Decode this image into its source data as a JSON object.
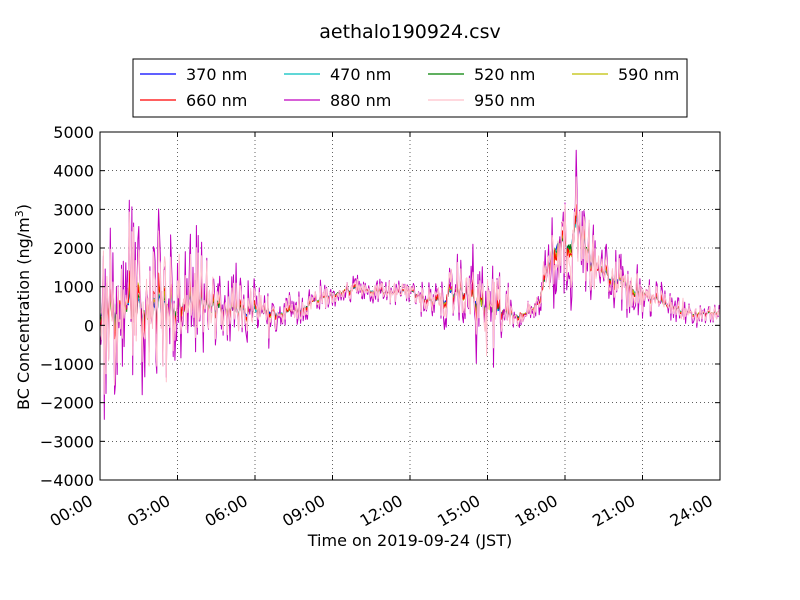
{
  "chart_data": {
    "type": "line",
    "title": "aethalo190924.csv",
    "xlabel": "Time on 2019-09-24 (JST)",
    "ylabel_main": "BC Concentration (ng/m",
    "ylabel_sup": "3",
    "ylabel_close": ")",
    "xlim_hours": [
      0,
      24
    ],
    "ylim": [
      -4000,
      5000
    ],
    "x_ticks": [
      {
        "hour": 0,
        "label": "00:00"
      },
      {
        "hour": 3,
        "label": "03:00"
      },
      {
        "hour": 6,
        "label": "06:00"
      },
      {
        "hour": 9,
        "label": "09:00"
      },
      {
        "hour": 12,
        "label": "12:00"
      },
      {
        "hour": 15,
        "label": "15:00"
      },
      {
        "hour": 18,
        "label": "18:00"
      },
      {
        "hour": 21,
        "label": "21:00"
      },
      {
        "hour": 24,
        "label": "24:00"
      }
    ],
    "y_ticks": [
      {
        "value": 5000,
        "label": "5000"
      },
      {
        "value": 4000,
        "label": "4000"
      },
      {
        "value": 3000,
        "label": "3000"
      },
      {
        "value": 2000,
        "label": "2000"
      },
      {
        "value": 1000,
        "label": "1000"
      },
      {
        "value": 0,
        "label": "0"
      },
      {
        "value": -1000,
        "label": "−1000"
      },
      {
        "value": -2000,
        "label": "−2000"
      },
      {
        "value": -3000,
        "label": "−3000"
      },
      {
        "value": -4000,
        "label": "−4000"
      }
    ],
    "grid": true,
    "legend_position": "top-center",
    "base_profile": [
      [
        0,
        400
      ],
      [
        0.5,
        450
      ],
      [
        1,
        500
      ],
      [
        1.5,
        400
      ],
      [
        2,
        350
      ],
      [
        2.5,
        400
      ],
      [
        3,
        450
      ],
      [
        3.5,
        550
      ],
      [
        4,
        600
      ],
      [
        4.5,
        450
      ],
      [
        5,
        400
      ],
      [
        5.5,
        350
      ],
      [
        6,
        350
      ],
      [
        6.5,
        400
      ],
      [
        7,
        300
      ],
      [
        7.5,
        350
      ],
      [
        8,
        500
      ],
      [
        8.5,
        700
      ],
      [
        9,
        800
      ],
      [
        9.5,
        900
      ],
      [
        10,
        950
      ],
      [
        10.5,
        900
      ],
      [
        11,
        850
      ],
      [
        11.5,
        850
      ],
      [
        12,
        900
      ],
      [
        12.5,
        700
      ],
      [
        13,
        600
      ],
      [
        13.5,
        800
      ],
      [
        14,
        900
      ],
      [
        14.5,
        700
      ],
      [
        15,
        500
      ],
      [
        15.3,
        400
      ],
      [
        15.5,
        350
      ],
      [
        16,
        250
      ],
      [
        16.5,
        300
      ],
      [
        17,
        600
      ],
      [
        17.3,
        1500
      ],
      [
        17.7,
        2200
      ],
      [
        18,
        2000
      ],
      [
        18.5,
        2600
      ],
      [
        19,
        1700
      ],
      [
        19.5,
        1300
      ],
      [
        20,
        1200
      ],
      [
        20.5,
        1000
      ],
      [
        21,
        850
      ],
      [
        21.5,
        650
      ],
      [
        22,
        500
      ],
      [
        22.5,
        400
      ],
      [
        23,
        300
      ],
      [
        23.5,
        300
      ],
      [
        24,
        350
      ]
    ],
    "amplitude_profile": [
      [
        0,
        2000
      ],
      [
        1,
        2200
      ],
      [
        2,
        2400
      ],
      [
        3,
        1700
      ],
      [
        4,
        1200
      ],
      [
        5,
        900
      ],
      [
        6,
        700
      ],
      [
        7,
        500
      ],
      [
        8,
        400
      ],
      [
        9,
        300
      ],
      [
        10,
        300
      ],
      [
        11,
        300
      ],
      [
        12,
        300
      ],
      [
        13,
        450
      ],
      [
        13.5,
        900
      ],
      [
        14,
        600
      ],
      [
        14.5,
        1200
      ],
      [
        15,
        1500
      ],
      [
        15.5,
        1300
      ],
      [
        16,
        400
      ],
      [
        16.5,
        300
      ],
      [
        17,
        400
      ],
      [
        17.5,
        1500
      ],
      [
        18,
        1300
      ],
      [
        18.5,
        1400
      ],
      [
        19,
        900
      ],
      [
        20,
        700
      ],
      [
        21,
        600
      ],
      [
        22,
        400
      ],
      [
        23,
        300
      ],
      [
        24,
        250
      ]
    ],
    "series": [
      {
        "name": "370 nm",
        "color": "#0000ff",
        "noise_scale": 0.18
      },
      {
        "name": "470 nm",
        "color": "#00bfbf",
        "noise_scale": 0.22
      },
      {
        "name": "520 nm",
        "color": "#008000",
        "noise_scale": 0.26
      },
      {
        "name": "590 nm",
        "color": "#bfbf00",
        "noise_scale": 0.3
      },
      {
        "name": "660 nm",
        "color": "#ff0000",
        "noise_scale": 0.36
      },
      {
        "name": "880 nm",
        "color": "#bf00bf",
        "noise_scale": 1.0
      },
      {
        "name": "950 nm",
        "color": "#ffc0cb",
        "noise_scale": 0.75
      }
    ]
  }
}
